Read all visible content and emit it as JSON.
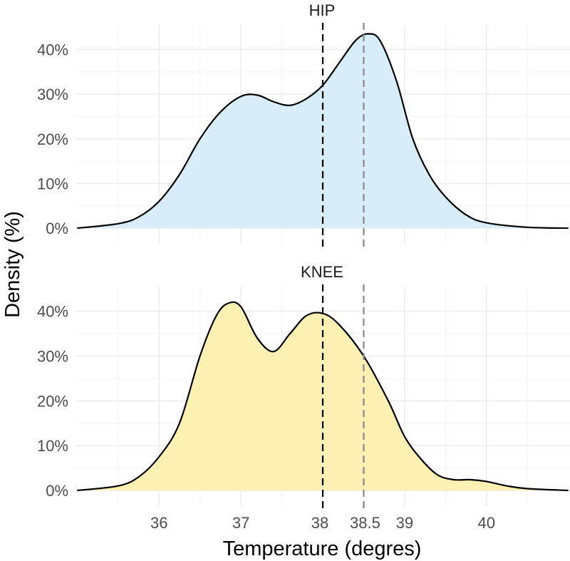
{
  "chart_data": {
    "type": "area",
    "xlabel": "Temperature (degres)",
    "ylabel": "Density (%)",
    "xlim": [
      34.98,
      41.02
    ],
    "x_major_ticks": [
      36,
      37,
      38,
      39,
      40
    ],
    "x_extra_tick": 38.5,
    "x_tick_labels": [
      "36",
      "37",
      "38",
      "38.5",
      "39",
      "40"
    ],
    "x_minor_ticks": [
      35.5,
      36.5,
      37.5,
      38.5,
      39.5,
      40.5
    ],
    "ylim": [
      -0.035,
      0.455
    ],
    "y_ticks": [
      0,
      0.1,
      0.2,
      0.3,
      0.4
    ],
    "y_tick_labels": [
      "0%",
      "10%",
      "20%",
      "30%",
      "40%"
    ],
    "reference_lines": [
      {
        "x": 38.0,
        "style": "dashed",
        "color": "#000000"
      },
      {
        "x": 38.5,
        "style": "dashed",
        "color": "#888888"
      }
    ],
    "panels": [
      {
        "title": "HIP",
        "fill": "#d8ecfa",
        "x": [
          35.0,
          35.5,
          35.75,
          36.0,
          36.25,
          36.5,
          36.75,
          37.0,
          37.2,
          37.4,
          37.6,
          37.8,
          38.0,
          38.2,
          38.4,
          38.55,
          38.7,
          38.9,
          39.1,
          39.3,
          39.5,
          39.75,
          40.0,
          40.5,
          41.0
        ],
        "density": [
          0.0,
          0.01,
          0.025,
          0.06,
          0.12,
          0.2,
          0.26,
          0.295,
          0.298,
          0.283,
          0.275,
          0.29,
          0.32,
          0.37,
          0.42,
          0.435,
          0.42,
          0.33,
          0.2,
          0.12,
          0.07,
          0.03,
          0.012,
          0.002,
          0.0
        ]
      },
      {
        "title": "KNEE",
        "fill": "#fcf0b3",
        "x": [
          35.0,
          35.5,
          35.75,
          36.0,
          36.25,
          36.5,
          36.7,
          36.85,
          37.0,
          37.2,
          37.4,
          37.6,
          37.8,
          38.0,
          38.2,
          38.5,
          38.8,
          39.0,
          39.2,
          39.4,
          39.6,
          39.8,
          40.0,
          40.25,
          40.5,
          41.0
        ],
        "density": [
          0.0,
          0.01,
          0.03,
          0.075,
          0.15,
          0.3,
          0.39,
          0.418,
          0.41,
          0.34,
          0.31,
          0.35,
          0.39,
          0.395,
          0.37,
          0.3,
          0.2,
          0.12,
          0.07,
          0.035,
          0.024,
          0.024,
          0.02,
          0.01,
          0.004,
          0.0
        ]
      }
    ]
  }
}
